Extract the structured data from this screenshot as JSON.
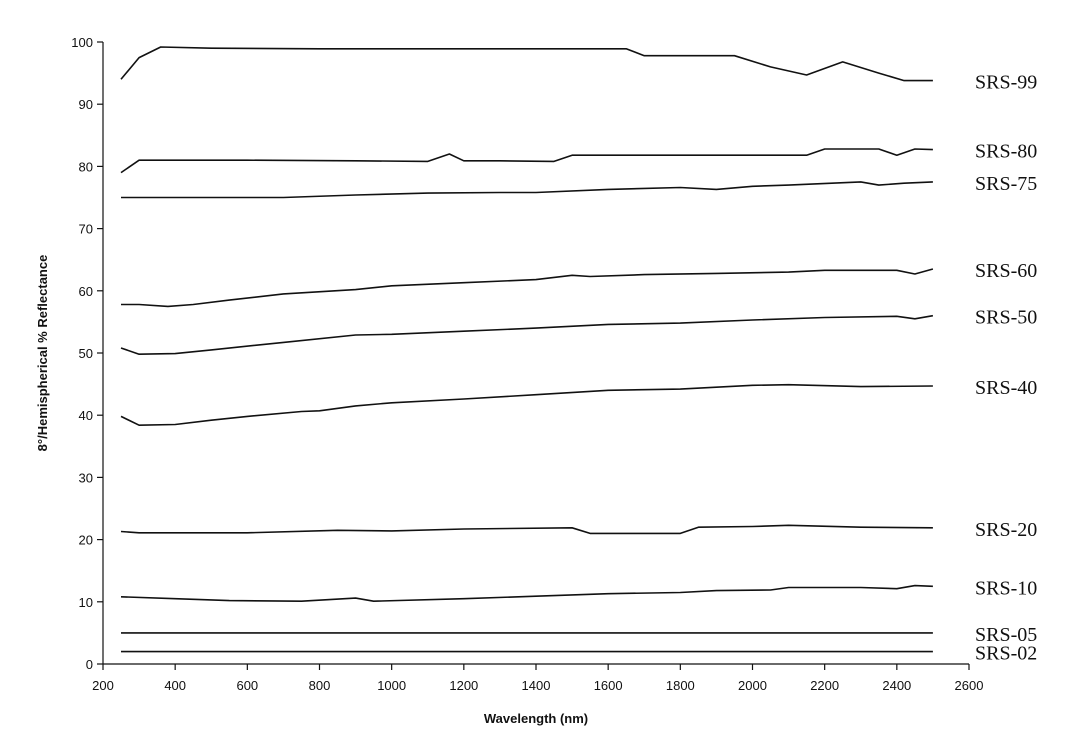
{
  "chart_data": {
    "type": "line",
    "xlabel": "Wavelength (nm)",
    "ylabel": "8°/Hemispherical % Reflectance",
    "xlim": [
      200,
      2600
    ],
    "ylim": [
      0,
      100
    ],
    "xticks": [
      200,
      400,
      600,
      800,
      1000,
      1200,
      1400,
      1600,
      1800,
      2000,
      2200,
      2400,
      2600
    ],
    "yticks": [
      0,
      10,
      20,
      30,
      40,
      50,
      60,
      70,
      80,
      90,
      100
    ],
    "grid": false,
    "colors": {
      "line": "#111111",
      "axis": "#111111",
      "background": "#ffffff"
    },
    "series": [
      {
        "name": "SRS-99",
        "points": [
          [
            250,
            94
          ],
          [
            300,
            97.5
          ],
          [
            360,
            99.2
          ],
          [
            500,
            99
          ],
          [
            800,
            98.9
          ],
          [
            1200,
            98.9
          ],
          [
            1650,
            98.9
          ],
          [
            1700,
            97.8
          ],
          [
            1950,
            97.8
          ],
          [
            2050,
            96
          ],
          [
            2150,
            94.7
          ],
          [
            2250,
            96.8
          ],
          [
            2350,
            95
          ],
          [
            2420,
            93.8
          ],
          [
            2500,
            93.8
          ]
        ]
      },
      {
        "name": "SRS-80",
        "points": [
          [
            250,
            79
          ],
          [
            300,
            81
          ],
          [
            340,
            81
          ],
          [
            600,
            81
          ],
          [
            900,
            80.9
          ],
          [
            1100,
            80.8
          ],
          [
            1160,
            82
          ],
          [
            1200,
            80.9
          ],
          [
            1300,
            80.9
          ],
          [
            1450,
            80.8
          ],
          [
            1500,
            81.8
          ],
          [
            1800,
            81.8
          ],
          [
            2150,
            81.8
          ],
          [
            2200,
            82.8
          ],
          [
            2350,
            82.8
          ],
          [
            2400,
            81.8
          ],
          [
            2450,
            82.8
          ],
          [
            2500,
            82.7
          ]
        ]
      },
      {
        "name": "SRS-75",
        "points": [
          [
            250,
            75
          ],
          [
            500,
            75
          ],
          [
            700,
            75
          ],
          [
            900,
            75.4
          ],
          [
            1100,
            75.7
          ],
          [
            1300,
            75.8
          ],
          [
            1400,
            75.8
          ],
          [
            1600,
            76.3
          ],
          [
            1800,
            76.6
          ],
          [
            1900,
            76.3
          ],
          [
            2000,
            76.8
          ],
          [
            2100,
            77
          ],
          [
            2300,
            77.5
          ],
          [
            2350,
            77
          ],
          [
            2420,
            77.3
          ],
          [
            2500,
            77.5
          ]
        ]
      },
      {
        "name": "SRS-60",
        "points": [
          [
            250,
            57.8
          ],
          [
            300,
            57.8
          ],
          [
            380,
            57.5
          ],
          [
            450,
            57.8
          ],
          [
            550,
            58.5
          ],
          [
            700,
            59.5
          ],
          [
            900,
            60.2
          ],
          [
            1000,
            60.8
          ],
          [
            1200,
            61.3
          ],
          [
            1400,
            61.8
          ],
          [
            1500,
            62.5
          ],
          [
            1550,
            62.3
          ],
          [
            1700,
            62.6
          ],
          [
            1900,
            62.8
          ],
          [
            2100,
            63
          ],
          [
            2200,
            63.3
          ],
          [
            2400,
            63.3
          ],
          [
            2450,
            62.7
          ],
          [
            2500,
            63.5
          ]
        ]
      },
      {
        "name": "SRS-50",
        "points": [
          [
            250,
            50.8
          ],
          [
            300,
            49.8
          ],
          [
            400,
            49.9
          ],
          [
            500,
            50.5
          ],
          [
            700,
            51.7
          ],
          [
            900,
            52.9
          ],
          [
            1000,
            53
          ],
          [
            1200,
            53.5
          ],
          [
            1400,
            54
          ],
          [
            1600,
            54.6
          ],
          [
            1800,
            54.8
          ],
          [
            2000,
            55.3
          ],
          [
            2200,
            55.7
          ],
          [
            2400,
            55.9
          ],
          [
            2450,
            55.5
          ],
          [
            2500,
            56
          ]
        ]
      },
      {
        "name": "SRS-40",
        "points": [
          [
            250,
            39.8
          ],
          [
            300,
            38.4
          ],
          [
            400,
            38.5
          ],
          [
            500,
            39.2
          ],
          [
            600,
            39.8
          ],
          [
            750,
            40.6
          ],
          [
            800,
            40.7
          ],
          [
            900,
            41.5
          ],
          [
            1000,
            42
          ],
          [
            1200,
            42.6
          ],
          [
            1400,
            43.3
          ],
          [
            1600,
            44
          ],
          [
            1800,
            44.2
          ],
          [
            2000,
            44.8
          ],
          [
            2100,
            44.9
          ],
          [
            2300,
            44.6
          ],
          [
            2500,
            44.7
          ]
        ]
      },
      {
        "name": "SRS-20",
        "points": [
          [
            250,
            21.3
          ],
          [
            300,
            21.1
          ],
          [
            600,
            21.1
          ],
          [
            850,
            21.5
          ],
          [
            1000,
            21.4
          ],
          [
            1200,
            21.7
          ],
          [
            1500,
            21.9
          ],
          [
            1550,
            21
          ],
          [
            1800,
            21
          ],
          [
            1850,
            22
          ],
          [
            2000,
            22.1
          ],
          [
            2100,
            22.3
          ],
          [
            2300,
            22
          ],
          [
            2500,
            21.9
          ]
        ]
      },
      {
        "name": "SRS-10",
        "points": [
          [
            250,
            10.8
          ],
          [
            400,
            10.5
          ],
          [
            550,
            10.2
          ],
          [
            750,
            10.1
          ],
          [
            900,
            10.6
          ],
          [
            950,
            10.1
          ],
          [
            1200,
            10.5
          ],
          [
            1400,
            10.9
          ],
          [
            1600,
            11.3
          ],
          [
            1800,
            11.5
          ],
          [
            1900,
            11.8
          ],
          [
            2050,
            11.9
          ],
          [
            2100,
            12.3
          ],
          [
            2300,
            12.3
          ],
          [
            2400,
            12.1
          ],
          [
            2450,
            12.6
          ],
          [
            2500,
            12.5
          ]
        ]
      },
      {
        "name": "SRS-05",
        "points": [
          [
            250,
            5
          ],
          [
            2500,
            5
          ]
        ]
      },
      {
        "name": "SRS-02",
        "points": [
          [
            250,
            2
          ],
          [
            2500,
            2
          ]
        ]
      }
    ]
  }
}
